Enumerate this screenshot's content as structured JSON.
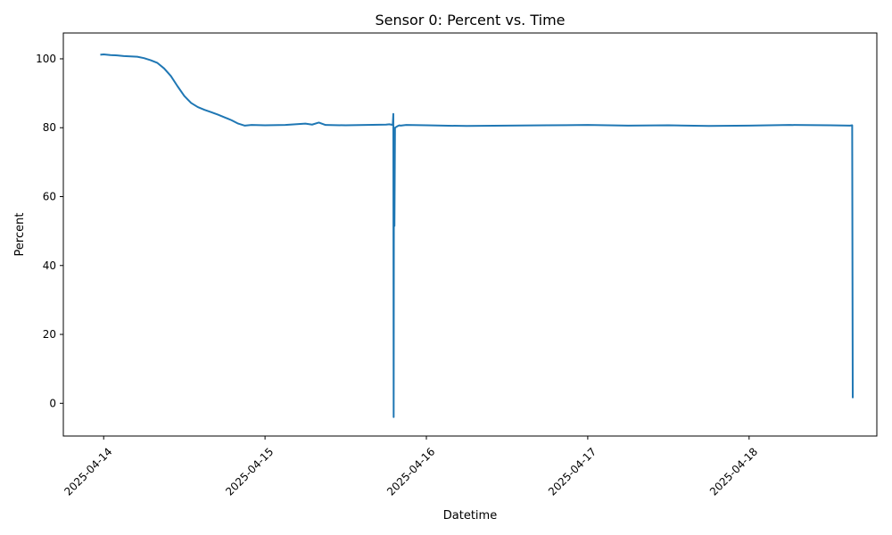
{
  "chart_data": {
    "type": "line",
    "title": "Sensor 0: Percent vs. Time",
    "xlabel": "Datetime",
    "ylabel": "Percent",
    "x_type": "datetime",
    "xlim": [
      "2025-04-13T18:00",
      "2025-04-18T19:00"
    ],
    "ylim": [
      -9.5,
      107.5
    ],
    "xticks": [
      "2025-04-14",
      "2025-04-15",
      "2025-04-16",
      "2025-04-17",
      "2025-04-18"
    ],
    "yticks": [
      0,
      20,
      40,
      60,
      80,
      100
    ],
    "grid": false,
    "legend": "none",
    "line_color": "#1f77b4",
    "series": [
      {
        "x": [
          "2025-04-13T23:30",
          "2025-04-14T00:00",
          "2025-04-14T01:00",
          "2025-04-14T02:00",
          "2025-04-14T03:00",
          "2025-04-14T04:00",
          "2025-04-14T05:00",
          "2025-04-14T06:00",
          "2025-04-14T07:00",
          "2025-04-14T08:00",
          "2025-04-14T09:00",
          "2025-04-14T10:00",
          "2025-04-14T11:00",
          "2025-04-14T12:00",
          "2025-04-14T13:00",
          "2025-04-14T14:00",
          "2025-04-14T15:00",
          "2025-04-14T16:00",
          "2025-04-14T17:00",
          "2025-04-14T18:00",
          "2025-04-14T19:00",
          "2025-04-14T20:00",
          "2025-04-14T21:00",
          "2025-04-14T22:00",
          "2025-04-15T00:00",
          "2025-04-15T03:00",
          "2025-04-15T06:00",
          "2025-04-15T07:00",
          "2025-04-15T08:00",
          "2025-04-15T09:00",
          "2025-04-15T12:00",
          "2025-04-15T15:00",
          "2025-04-15T18:00",
          "2025-04-15T18:30",
          "2025-04-15T18:45",
          "2025-04-15T19:00",
          "2025-04-15T19:05",
          "2025-04-15T19:08",
          "2025-04-15T19:10",
          "2025-04-15T19:15",
          "2025-04-15T19:20",
          "2025-04-15T19:45",
          "2025-04-15T20:00",
          "2025-04-15T20:10",
          "2025-04-15T21:00",
          "2025-04-16T00:00",
          "2025-04-16T06:00",
          "2025-04-16T12:00",
          "2025-04-16T18:00",
          "2025-04-17T00:00",
          "2025-04-17T06:00",
          "2025-04-17T12:00",
          "2025-04-17T18:00",
          "2025-04-18T00:00",
          "2025-04-18T06:00",
          "2025-04-18T12:00",
          "2025-04-18T15:00",
          "2025-04-18T15:20",
          "2025-04-18T15:25"
        ],
        "y": [
          101.2,
          101.3,
          101.1,
          101.0,
          100.8,
          100.7,
          100.6,
          100.2,
          99.6,
          98.8,
          97.2,
          95.0,
          92.0,
          89.2,
          87.2,
          86.0,
          85.2,
          84.5,
          83.8,
          83.0,
          82.2,
          81.2,
          80.6,
          80.8,
          80.7,
          80.8,
          81.2,
          80.9,
          81.5,
          80.8,
          80.7,
          80.8,
          80.9,
          81.0,
          80.9,
          80.8,
          84.0,
          -4.0,
          60.0,
          51.5,
          80.0,
          80.5,
          80.7,
          80.6,
          80.8,
          80.7,
          80.5,
          80.6,
          80.7,
          80.8,
          80.6,
          80.7,
          80.5,
          80.6,
          80.8,
          80.7,
          80.6,
          80.7,
          1.5
        ]
      }
    ]
  }
}
